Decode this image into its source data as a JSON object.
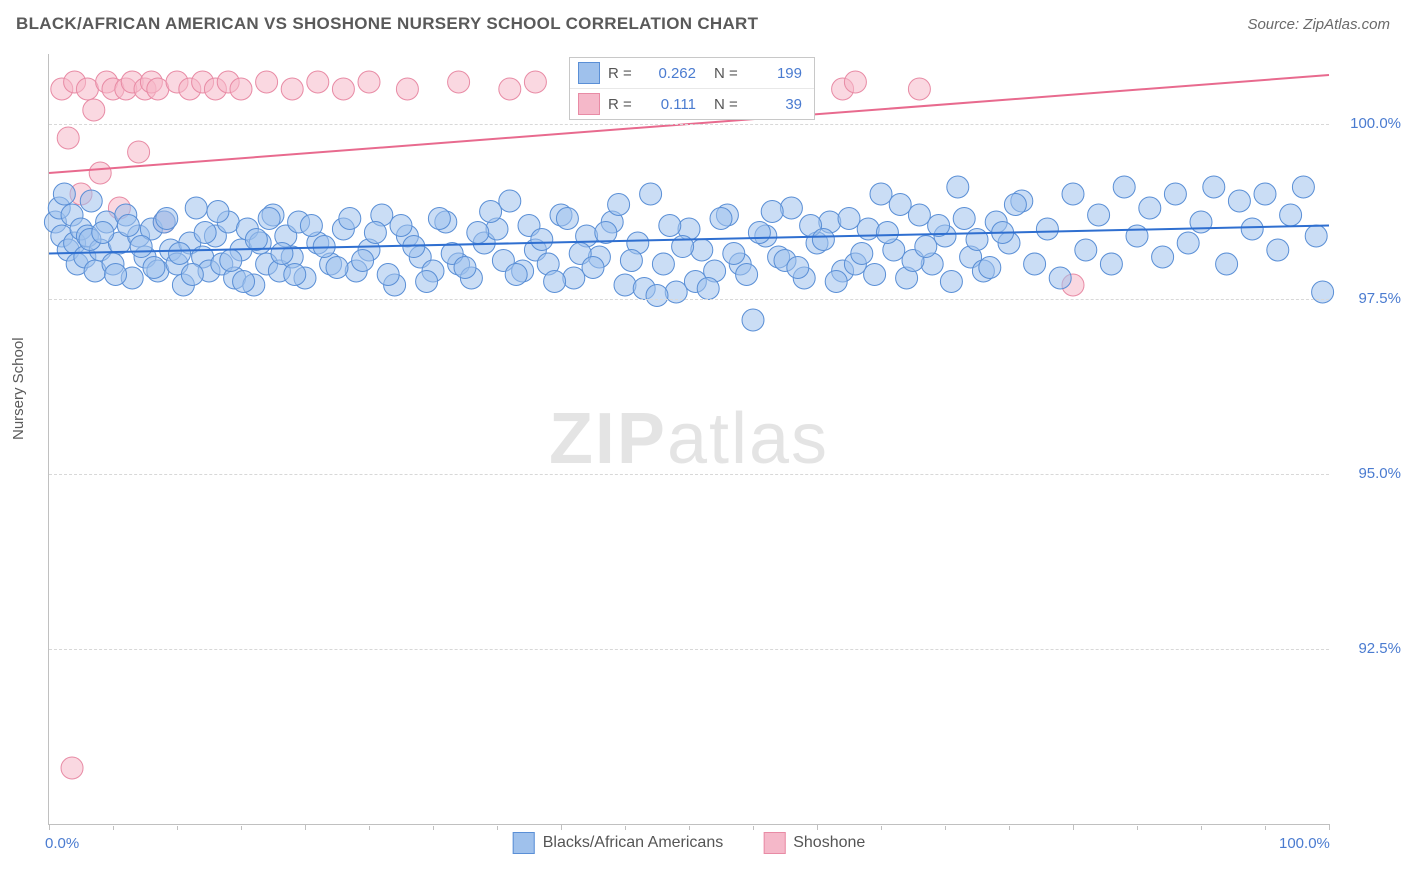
{
  "header": {
    "title": "BLACK/AFRICAN AMERICAN VS SHOSHONE NURSERY SCHOOL CORRELATION CHART",
    "source": "Source: ZipAtlas.com"
  },
  "chart": {
    "type": "scatter",
    "ylabel": "Nursery School",
    "watermark_a": "ZIP",
    "watermark_b": "atlas",
    "xlim": [
      0,
      100
    ],
    "ylim": [
      90.0,
      101.0
    ],
    "x_tick_labels": {
      "0": "0.0%",
      "100": "100.0%"
    },
    "x_ticks_major": [
      0,
      20,
      40,
      60,
      80,
      100
    ],
    "x_ticks_minor": [
      5,
      10,
      15,
      25,
      30,
      35,
      45,
      50,
      55,
      65,
      70,
      75,
      85,
      90,
      95
    ],
    "y_gridlines": [
      92.5,
      95.0,
      97.5,
      100.0
    ],
    "y_tick_labels": {
      "92.5": "92.5%",
      "95.0": "95.0%",
      "97.5": "97.5%",
      "100.0": "100.0%"
    },
    "background_color": "#ffffff",
    "grid_color": "#d8d8d8",
    "axis_color": "#c0c0c0",
    "label_fontsize": 15,
    "tick_color": "#4a7bd0",
    "marker_radius": 11,
    "marker_opacity": 0.55,
    "line_width": 2,
    "series": [
      {
        "name": "Blacks/African Americans",
        "color_fill": "#9fc1ec",
        "color_stroke": "#5a8fd6",
        "line_color": "#2f6fd0",
        "R": "0.262",
        "N": "199",
        "trend": {
          "x1": 0,
          "y1": 98.15,
          "x2": 100,
          "y2": 98.55
        },
        "points": [
          [
            0.5,
            98.6
          ],
          [
            0.8,
            98.8
          ],
          [
            1.0,
            98.4
          ],
          [
            1.2,
            99.0
          ],
          [
            1.5,
            98.2
          ],
          [
            1.8,
            98.7
          ],
          [
            2.0,
            98.3
          ],
          [
            2.2,
            98.0
          ],
          [
            2.5,
            98.5
          ],
          [
            2.8,
            98.1
          ],
          [
            3.0,
            98.4
          ],
          [
            3.3,
            98.9
          ],
          [
            3.6,
            97.9
          ],
          [
            4.0,
            98.2
          ],
          [
            4.5,
            98.6
          ],
          [
            5.0,
            98.0
          ],
          [
            5.5,
            98.3
          ],
          [
            6.0,
            98.7
          ],
          [
            6.5,
            97.8
          ],
          [
            7.0,
            98.4
          ],
          [
            7.5,
            98.1
          ],
          [
            8.0,
            98.5
          ],
          [
            8.5,
            97.9
          ],
          [
            9.0,
            98.6
          ],
          [
            9.5,
            98.2
          ],
          [
            10.0,
            98.0
          ],
          [
            10.5,
            97.7
          ],
          [
            11.0,
            98.3
          ],
          [
            11.5,
            98.8
          ],
          [
            12.0,
            98.1
          ],
          [
            12.5,
            97.9
          ],
          [
            13.0,
            98.4
          ],
          [
            13.5,
            98.0
          ],
          [
            14.0,
            98.6
          ],
          [
            14.5,
            97.8
          ],
          [
            15.0,
            98.2
          ],
          [
            15.5,
            98.5
          ],
          [
            16.0,
            97.7
          ],
          [
            16.5,
            98.3
          ],
          [
            17.0,
            98.0
          ],
          [
            17.5,
            98.7
          ],
          [
            18.0,
            97.9
          ],
          [
            18.5,
            98.4
          ],
          [
            19.0,
            98.1
          ],
          [
            19.5,
            98.6
          ],
          [
            20.0,
            97.8
          ],
          [
            21.0,
            98.3
          ],
          [
            22.0,
            98.0
          ],
          [
            23.0,
            98.5
          ],
          [
            24.0,
            97.9
          ],
          [
            25.0,
            98.2
          ],
          [
            26.0,
            98.7
          ],
          [
            27.0,
            97.7
          ],
          [
            28.0,
            98.4
          ],
          [
            29.0,
            98.1
          ],
          [
            30.0,
            97.9
          ],
          [
            31.0,
            98.6
          ],
          [
            32.0,
            98.0
          ],
          [
            33.0,
            97.8
          ],
          [
            34.0,
            98.3
          ],
          [
            35.0,
            98.5
          ],
          [
            36.0,
            98.9
          ],
          [
            37.0,
            97.9
          ],
          [
            38.0,
            98.2
          ],
          [
            39.0,
            98.0
          ],
          [
            40.0,
            98.7
          ],
          [
            41.0,
            97.8
          ],
          [
            42.0,
            98.4
          ],
          [
            43.0,
            98.1
          ],
          [
            44.0,
            98.6
          ],
          [
            45.0,
            97.7
          ],
          [
            46.0,
            98.3
          ],
          [
            47.0,
            99.0
          ],
          [
            48.0,
            98.0
          ],
          [
            49.0,
            97.6
          ],
          [
            50.0,
            98.5
          ],
          [
            51.0,
            98.2
          ],
          [
            52.0,
            97.9
          ],
          [
            53.0,
            98.7
          ],
          [
            54.0,
            98.0
          ],
          [
            55.0,
            97.2
          ],
          [
            56.0,
            98.4
          ],
          [
            57.0,
            98.1
          ],
          [
            58.0,
            98.8
          ],
          [
            59.0,
            97.8
          ],
          [
            60.0,
            98.3
          ],
          [
            61.0,
            98.6
          ],
          [
            62.0,
            97.9
          ],
          [
            63.0,
            98.0
          ],
          [
            64.0,
            98.5
          ],
          [
            65.0,
            99.0
          ],
          [
            66.0,
            98.2
          ],
          [
            67.0,
            97.8
          ],
          [
            68.0,
            98.7
          ],
          [
            69.0,
            98.0
          ],
          [
            70.0,
            98.4
          ],
          [
            71.0,
            99.1
          ],
          [
            72.0,
            98.1
          ],
          [
            73.0,
            97.9
          ],
          [
            74.0,
            98.6
          ],
          [
            75.0,
            98.3
          ],
          [
            76.0,
            98.9
          ],
          [
            77.0,
            98.0
          ],
          [
            78.0,
            98.5
          ],
          [
            79.0,
            97.8
          ],
          [
            80.0,
            99.0
          ],
          [
            81.0,
            98.2
          ],
          [
            82.0,
            98.7
          ],
          [
            83.0,
            98.0
          ],
          [
            84.0,
            99.1
          ],
          [
            85.0,
            98.4
          ],
          [
            86.0,
            98.8
          ],
          [
            87.0,
            98.1
          ],
          [
            88.0,
            99.0
          ],
          [
            89.0,
            98.3
          ],
          [
            90.0,
            98.6
          ],
          [
            91.0,
            99.1
          ],
          [
            92.0,
            98.0
          ],
          [
            93.0,
            98.9
          ],
          [
            94.0,
            98.5
          ],
          [
            95.0,
            99.0
          ],
          [
            96.0,
            98.2
          ],
          [
            97.0,
            98.7
          ],
          [
            98.0,
            99.1
          ],
          [
            99.0,
            98.4
          ],
          [
            99.5,
            97.6
          ],
          [
            3.2,
            98.35
          ],
          [
            4.2,
            98.45
          ],
          [
            5.2,
            97.85
          ],
          [
            6.2,
            98.55
          ],
          [
            7.2,
            98.25
          ],
          [
            8.2,
            97.95
          ],
          [
            9.2,
            98.65
          ],
          [
            10.2,
            98.15
          ],
          [
            11.2,
            97.85
          ],
          [
            12.2,
            98.45
          ],
          [
            13.2,
            98.75
          ],
          [
            14.2,
            98.05
          ],
          [
            15.2,
            97.75
          ],
          [
            16.2,
            98.35
          ],
          [
            17.2,
            98.65
          ],
          [
            18.2,
            98.15
          ],
          [
            19.2,
            97.85
          ],
          [
            20.5,
            98.55
          ],
          [
            21.5,
            98.25
          ],
          [
            22.5,
            97.95
          ],
          [
            23.5,
            98.65
          ],
          [
            24.5,
            98.05
          ],
          [
            25.5,
            98.45
          ],
          [
            26.5,
            97.85
          ],
          [
            27.5,
            98.55
          ],
          [
            28.5,
            98.25
          ],
          [
            29.5,
            97.75
          ],
          [
            30.5,
            98.65
          ],
          [
            31.5,
            98.15
          ],
          [
            32.5,
            97.95
          ],
          [
            33.5,
            98.45
          ],
          [
            34.5,
            98.75
          ],
          [
            35.5,
            98.05
          ],
          [
            36.5,
            97.85
          ],
          [
            37.5,
            98.55
          ],
          [
            38.5,
            98.35
          ],
          [
            39.5,
            97.75
          ],
          [
            40.5,
            98.65
          ],
          [
            41.5,
            98.15
          ],
          [
            42.5,
            97.95
          ],
          [
            43.5,
            98.45
          ],
          [
            44.5,
            98.85
          ],
          [
            45.5,
            98.05
          ],
          [
            46.5,
            97.65
          ],
          [
            47.5,
            97.55
          ],
          [
            48.5,
            98.55
          ],
          [
            49.5,
            98.25
          ],
          [
            50.5,
            97.75
          ],
          [
            51.5,
            97.65
          ],
          [
            52.5,
            98.65
          ],
          [
            53.5,
            98.15
          ],
          [
            54.5,
            97.85
          ],
          [
            55.5,
            98.45
          ],
          [
            56.5,
            98.75
          ],
          [
            57.5,
            98.05
          ],
          [
            58.5,
            97.95
          ],
          [
            59.5,
            98.55
          ],
          [
            60.5,
            98.35
          ],
          [
            61.5,
            97.75
          ],
          [
            62.5,
            98.65
          ],
          [
            63.5,
            98.15
          ],
          [
            64.5,
            97.85
          ],
          [
            65.5,
            98.45
          ],
          [
            66.5,
            98.85
          ],
          [
            67.5,
            98.05
          ],
          [
            68.5,
            98.25
          ],
          [
            69.5,
            98.55
          ],
          [
            70.5,
            97.75
          ],
          [
            71.5,
            98.65
          ],
          [
            72.5,
            98.35
          ],
          [
            73.5,
            97.95
          ],
          [
            74.5,
            98.45
          ],
          [
            75.5,
            98.85
          ]
        ]
      },
      {
        "name": "Shoshone",
        "color_fill": "#f5b8c9",
        "color_stroke": "#e88ba5",
        "line_color": "#e86a8e",
        "R": "0.111",
        "N": "39",
        "trend": {
          "x1": 0,
          "y1": 99.3,
          "x2": 100,
          "y2": 100.7
        },
        "points": [
          [
            1.0,
            100.5
          ],
          [
            1.5,
            99.8
          ],
          [
            2.0,
            100.6
          ],
          [
            2.5,
            99.0
          ],
          [
            3.0,
            100.5
          ],
          [
            3.5,
            100.2
          ],
          [
            4.0,
            99.3
          ],
          [
            4.5,
            100.6
          ],
          [
            5.0,
            100.5
          ],
          [
            5.5,
            98.8
          ],
          [
            6.0,
            100.5
          ],
          [
            6.5,
            100.6
          ],
          [
            7.0,
            99.6
          ],
          [
            7.5,
            100.5
          ],
          [
            8.0,
            100.6
          ],
          [
            8.5,
            100.5
          ],
          [
            9.0,
            98.6
          ],
          [
            10.0,
            100.6
          ],
          [
            11.0,
            100.5
          ],
          [
            12.0,
            100.6
          ],
          [
            13.0,
            100.5
          ],
          [
            14.0,
            100.6
          ],
          [
            15.0,
            100.5
          ],
          [
            17.0,
            100.6
          ],
          [
            19.0,
            100.5
          ],
          [
            21.0,
            100.6
          ],
          [
            23.0,
            100.5
          ],
          [
            25.0,
            100.6
          ],
          [
            28.0,
            100.5
          ],
          [
            32.0,
            100.6
          ],
          [
            36.0,
            100.5
          ],
          [
            38.0,
            100.6
          ],
          [
            45.0,
            100.5
          ],
          [
            48.0,
            100.6
          ],
          [
            62.0,
            100.5
          ],
          [
            63.0,
            100.6
          ],
          [
            68.0,
            100.5
          ],
          [
            80.0,
            97.7
          ],
          [
            1.8,
            90.8
          ]
        ]
      }
    ],
    "legend_bottom": [
      {
        "label": "Blacks/African Americans",
        "fill": "#9fc1ec",
        "stroke": "#5a8fd6"
      },
      {
        "label": "Shoshone",
        "fill": "#f5b8c9",
        "stroke": "#e88ba5"
      }
    ]
  }
}
